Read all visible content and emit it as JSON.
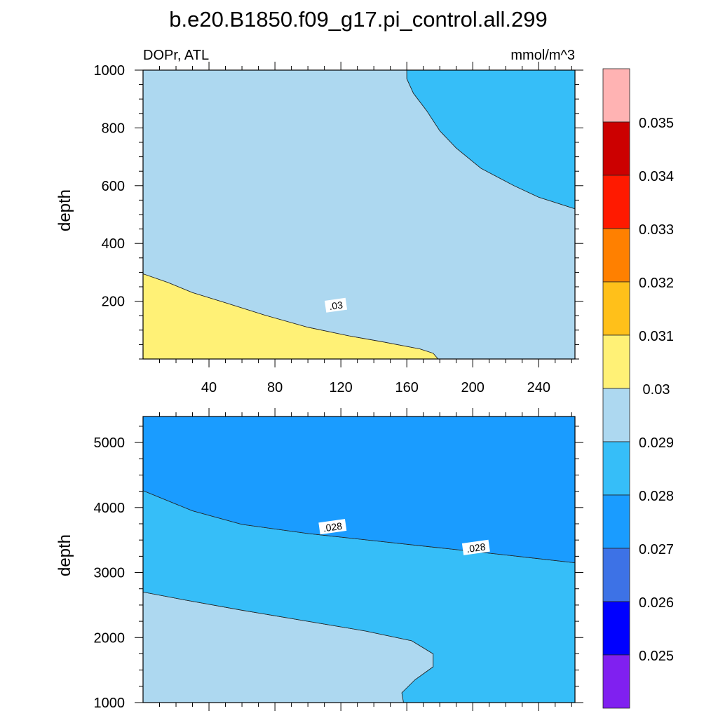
{
  "figure": {
    "title": "b.e20.B1850.f09_g17.pi_control.all.299",
    "left_subtitle": "DOPr, ATL",
    "right_subtitle": "mmol/m^3"
  },
  "chart_data": [
    {
      "type": "contour",
      "panel": "upper",
      "ylabel": "depth",
      "xlim": [
        0,
        262
      ],
      "ylim": [
        1000,
        0
      ],
      "x_ticks": [
        40,
        80,
        120,
        160,
        200,
        240
      ],
      "x_tick_labels": [
        "40",
        "80",
        "120",
        "160",
        "200",
        "240"
      ],
      "y_ticks": [
        200,
        400,
        600,
        800,
        1000
      ],
      "y_tick_labels": [
        "200",
        "400",
        "600",
        "800",
        "1000"
      ],
      "filled_regions": [
        {
          "level_range": [
            0.03,
            0.031
          ],
          "color": "#fff176",
          "polygon": [
            [
              0,
              0
            ],
            [
              179,
              0
            ],
            [
              176,
              20
            ],
            [
              168,
              35
            ],
            [
              145,
              60
            ],
            [
              125,
              80
            ],
            [
              100,
              110
            ],
            [
              75,
              150
            ],
            [
              50,
              195
            ],
            [
              30,
              230
            ],
            [
              15,
              265
            ],
            [
              0,
              295
            ]
          ]
        },
        {
          "level_range": [
            0.029,
            0.03
          ],
          "color": "#add8f0",
          "polygon": [
            [
              179,
              0
            ],
            [
              262,
              0
            ],
            [
              262,
              520
            ],
            [
              240,
              560
            ],
            [
              225,
              600
            ],
            [
              205,
              660
            ],
            [
              190,
              730
            ],
            [
              180,
              790
            ],
            [
              172,
              860
            ],
            [
              164,
              920
            ],
            [
              160,
              970
            ],
            [
              160,
              1000
            ],
            [
              0,
              1000
            ],
            [
              0,
              295
            ],
            [
              15,
              265
            ],
            [
              30,
              230
            ],
            [
              50,
              195
            ],
            [
              75,
              150
            ],
            [
              100,
              110
            ],
            [
              125,
              80
            ],
            [
              145,
              60
            ],
            [
              168,
              35
            ],
            [
              176,
              20
            ]
          ]
        },
        {
          "level_range": [
            0.028,
            0.029
          ],
          "color": "#36bef8",
          "polygon": [
            [
              262,
              520
            ],
            [
              262,
              1000
            ],
            [
              160,
              1000
            ],
            [
              160,
              970
            ],
            [
              164,
              920
            ],
            [
              172,
              860
            ],
            [
              180,
              790
            ],
            [
              190,
              730
            ],
            [
              205,
              660
            ],
            [
              225,
              600
            ],
            [
              240,
              560
            ]
          ]
        }
      ],
      "contour_labels": [
        {
          "text": ".03",
          "x": 117,
          "y": 185
        }
      ]
    },
    {
      "type": "contour",
      "panel": "lower",
      "ylabel": "depth",
      "xlim": [
        0,
        262
      ],
      "ylim": [
        5400,
        1000
      ],
      "y_ticks": [
        1000,
        2000,
        3000,
        4000,
        5000
      ],
      "y_tick_labels": [
        "1000",
        "2000",
        "3000",
        "4000",
        "5000"
      ],
      "filled_regions": [
        {
          "level_range": [
            0.029,
            0.03
          ],
          "color": "#add8f0",
          "polygon": [
            [
              0,
              1000
            ],
            [
              158,
              1000
            ],
            [
              157,
              1150
            ],
            [
              165,
              1350
            ],
            [
              176,
              1550
            ],
            [
              176,
              1750
            ],
            [
              163,
              1950
            ],
            [
              135,
              2100
            ],
            [
              100,
              2250
            ],
            [
              60,
              2420
            ],
            [
              25,
              2580
            ],
            [
              0,
              2700
            ]
          ]
        },
        {
          "level_range": [
            0.028,
            0.029
          ],
          "color": "#36bef8",
          "polygon": [
            [
              158,
              1000
            ],
            [
              262,
              1000
            ],
            [
              262,
              3150
            ],
            [
              220,
              3270
            ],
            [
              180,
              3380
            ],
            [
              140,
              3490
            ],
            [
              100,
              3600
            ],
            [
              60,
              3740
            ],
            [
              30,
              3950
            ],
            [
              0,
              4260
            ],
            [
              0,
              2700
            ],
            [
              25,
              2580
            ],
            [
              60,
              2420
            ],
            [
              100,
              2250
            ],
            [
              135,
              2100
            ],
            [
              163,
              1950
            ],
            [
              176,
              1750
            ],
            [
              176,
              1550
            ],
            [
              165,
              1350
            ],
            [
              157,
              1150
            ]
          ]
        },
        {
          "level_range": [
            0.027,
            0.028
          ],
          "color": "#1a9cff",
          "polygon": [
            [
              0,
              4260
            ],
            [
              30,
              3950
            ],
            [
              60,
              3740
            ],
            [
              100,
              3600
            ],
            [
              140,
              3490
            ],
            [
              180,
              3380
            ],
            [
              220,
              3270
            ],
            [
              262,
              3150
            ],
            [
              262,
              5400
            ],
            [
              0,
              5400
            ]
          ]
        }
      ],
      "contour_labels": [
        {
          "text": ".028",
          "x": 115,
          "y": 3700
        },
        {
          "text": ".028",
          "x": 202,
          "y": 3380
        }
      ]
    }
  ],
  "colorbar": {
    "levels": [
      "0.035",
      "0.034",
      "0.033",
      "0.032",
      "0.031",
      "0.03",
      "0.029",
      "0.028",
      "0.027",
      "0.026",
      "0.025"
    ],
    "colors": [
      "#ffb3b3",
      "#cc0000",
      "#ff1a00",
      "#ff8000",
      "#ffc01a",
      "#fff176",
      "#add8f0",
      "#36bef8",
      "#1a9cff",
      "#3d72e6",
      "#0000ff",
      "#8020f0"
    ]
  }
}
